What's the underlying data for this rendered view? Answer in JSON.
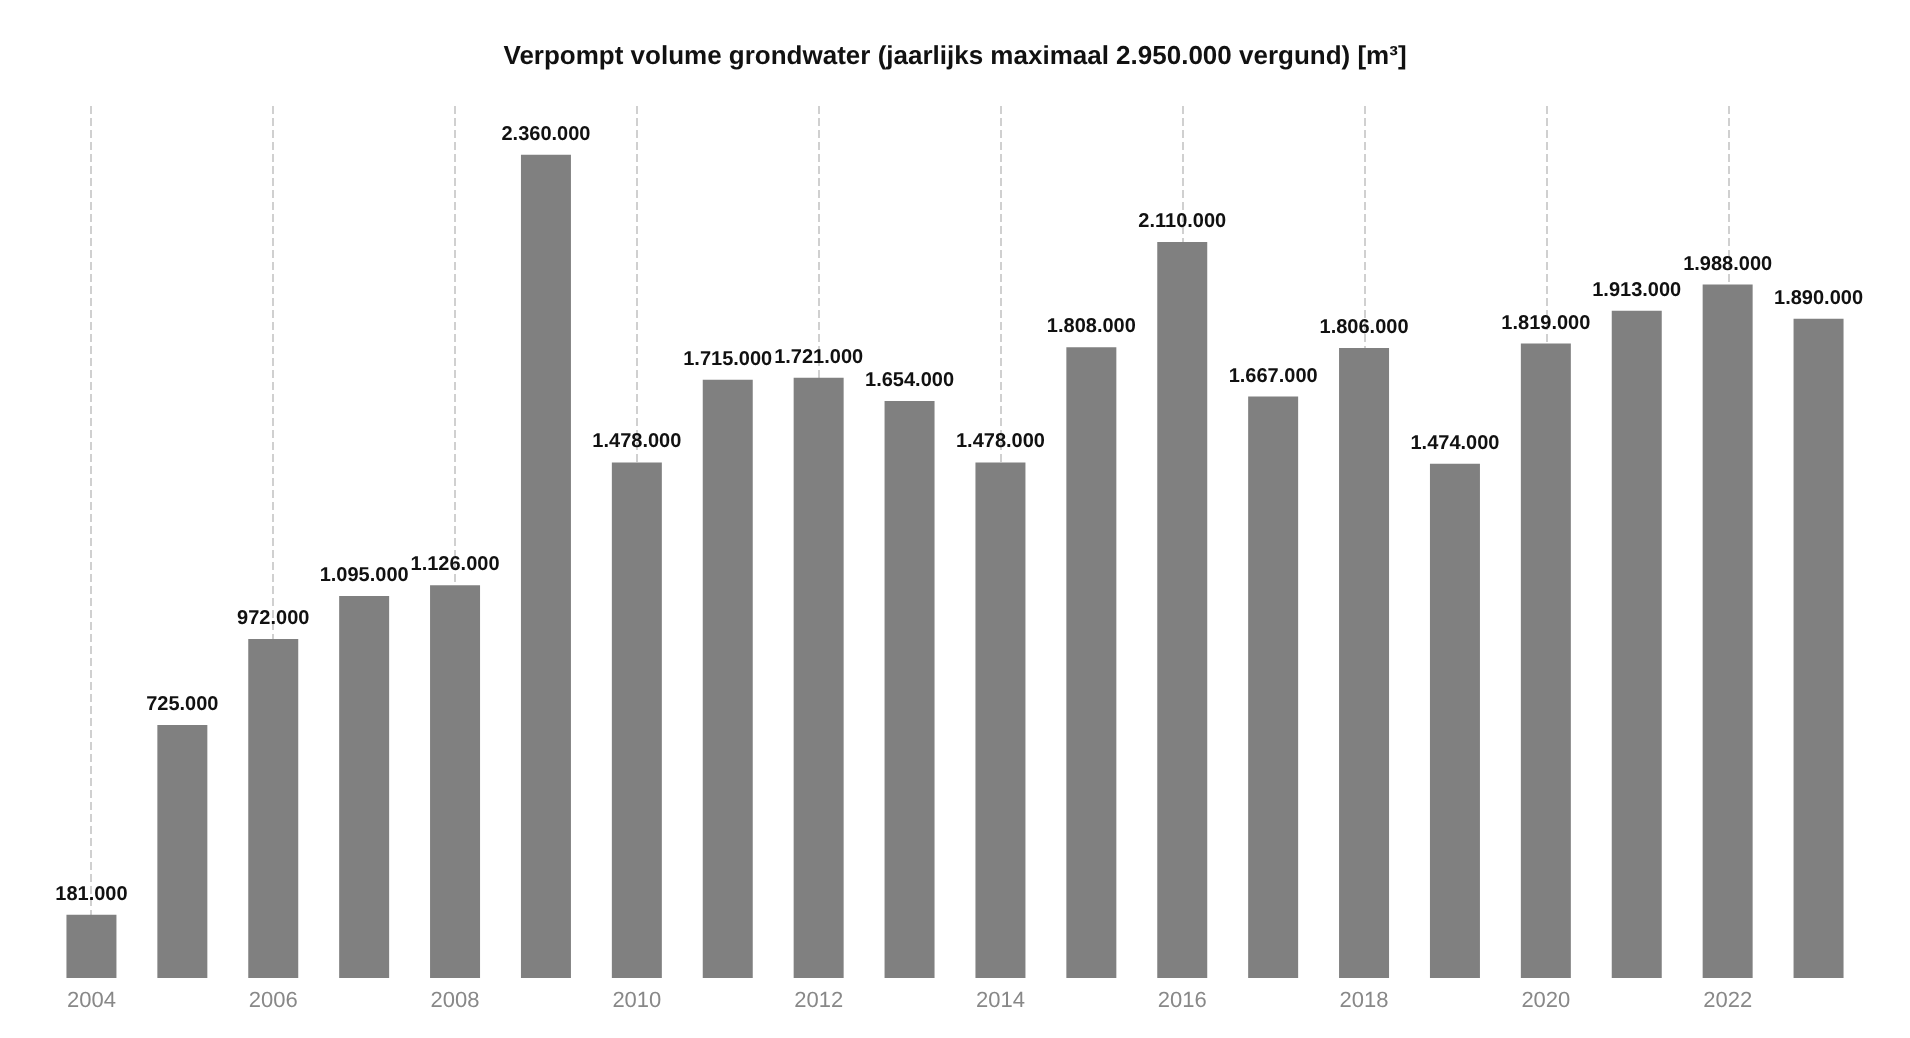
{
  "chart_data": {
    "type": "bar",
    "title": "Verpompt volume grondwater (jaarlijks maximaal 2.950.000 vergund) [m³]",
    "categories": [
      "2004",
      null,
      "2006",
      null,
      "2008",
      null,
      "2010",
      null,
      "2012",
      null,
      "2014",
      null,
      "2016",
      null,
      "2018",
      null,
      "2020",
      null,
      "2022",
      null
    ],
    "values": [
      181000,
      725000,
      972000,
      1095000,
      1126000,
      2360000,
      1478000,
      1715000,
      1721000,
      1654000,
      1478000,
      1808000,
      2110000,
      1667000,
      1806000,
      1474000,
      1819000,
      1913000,
      1988000,
      1890000
    ],
    "value_labels": [
      "181.000",
      "725.000",
      "972.000",
      "1.095.000",
      "1.126.000",
      "2.360.000",
      "1.478.000",
      "1.715.000",
      "1.721.000",
      "1.654.000",
      "1.478.000",
      "1.808.000",
      "2.110.000",
      "1.667.000",
      "1.806.000",
      "1.474.000",
      "1.819.000",
      "1.913.000",
      "1.988.000",
      "1.890.000"
    ],
    "color": "#808080",
    "grid": "x",
    "tick_labels": "x"
  }
}
